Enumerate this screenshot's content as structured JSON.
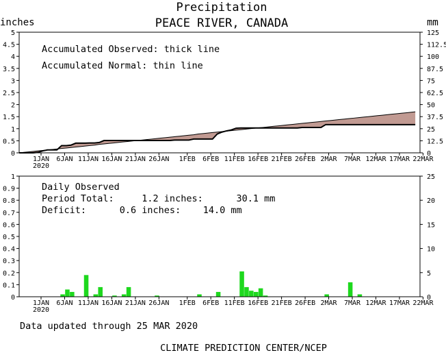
{
  "chart_data": [
    {
      "type": "area",
      "title": "Precipitation",
      "subtitle": "PEACE RIVER, CANADA",
      "ylabel_left": "inches",
      "ylabel_right": "mm",
      "ylim": [
        0,
        5
      ],
      "ylim_right": [
        0,
        125
      ],
      "yticks_left": [
        "0",
        "0.5",
        "1",
        "1.5",
        "2",
        "2.5",
        "3",
        "3.5",
        "4",
        "4.5",
        "5"
      ],
      "yticks_right": [
        "0",
        "12.5",
        "25",
        "37.5",
        "50",
        "62.5",
        "75",
        "87.5",
        "100",
        "112.5",
        "125"
      ],
      "xticks": [
        "1JAN",
        "6JAN",
        "11JAN",
        "16JAN",
        "21JAN",
        "26JAN",
        "1FEB",
        "6FEB",
        "11FEB",
        "16FEB",
        "21FEB",
        "26FEB",
        "2MAR",
        "7MAR",
        "12MAR",
        "17MAR",
        "22MAR"
      ],
      "xtick_sub": "2020",
      "annotations": [
        "Accumulated Observed: thick line",
        "Accumulated Normal: thin line"
      ],
      "series": [
        {
          "role": "observed",
          "values": [
            0.0,
            0.0,
            0.0,
            0.0,
            0.02,
            0.08,
            0.12,
            0.12,
            0.12,
            0.3,
            0.3,
            0.32,
            0.4,
            0.4,
            0.4,
            0.41,
            0.41,
            0.43,
            0.51,
            0.51,
            0.51,
            0.51,
            0.51,
            0.51,
            0.51,
            0.51,
            0.51,
            0.51,
            0.51,
            0.51,
            0.51,
            0.51,
            0.51,
            0.53,
            0.53,
            0.53,
            0.53,
            0.57,
            0.57,
            0.57,
            0.57,
            0.57,
            0.78,
            0.86,
            0.91,
            0.95,
            1.02,
            1.03,
            1.03,
            1.03,
            1.03,
            1.03,
            1.03,
            1.03,
            1.03,
            1.03,
            1.03,
            1.03,
            1.03,
            1.03,
            1.05,
            1.05,
            1.05,
            1.05,
            1.05,
            1.17,
            1.17,
            1.17,
            1.17,
            1.17,
            1.17,
            1.17,
            1.17,
            1.17,
            1.17,
            1.17,
            1.17,
            1.17,
            1.17,
            1.17,
            1.17,
            1.17,
            1.17,
            1.17,
            1.17
          ]
        },
        {
          "role": "normal",
          "values": [
            0.0,
            0.02,
            0.04,
            0.06,
            0.08,
            0.1,
            0.12,
            0.14,
            0.16,
            0.18,
            0.2,
            0.22,
            0.24,
            0.26,
            0.28,
            0.3,
            0.32,
            0.35,
            0.37,
            0.39,
            0.41,
            0.43,
            0.45,
            0.47,
            0.49,
            0.51,
            0.53,
            0.55,
            0.57,
            0.59,
            0.61,
            0.63,
            0.65,
            0.67,
            0.69,
            0.71,
            0.73,
            0.75,
            0.78,
            0.8,
            0.82,
            0.84,
            0.86,
            0.88,
            0.9,
            0.92,
            0.94,
            0.96,
            0.98,
            1.0,
            1.02,
            1.04,
            1.06,
            1.08,
            1.1,
            1.12,
            1.14,
            1.16,
            1.18,
            1.2,
            1.22,
            1.24,
            1.26,
            1.28,
            1.3,
            1.32,
            1.34,
            1.36,
            1.38,
            1.4,
            1.42,
            1.44,
            1.46,
            1.48,
            1.5,
            1.52,
            1.54,
            1.56,
            1.58,
            1.6,
            1.62,
            1.64,
            1.66,
            1.68,
            1.7
          ]
        }
      ]
    },
    {
      "type": "bar",
      "ylim": [
        0,
        1
      ],
      "ylim_right": [
        0,
        25
      ],
      "yticks_left": [
        "0",
        "0.1",
        "0.2",
        "0.3",
        "0.4",
        "0.5",
        "0.6",
        "0.7",
        "0.8",
        "0.9",
        "1"
      ],
      "yticks_right": [
        "0",
        "5",
        "10",
        "15",
        "20",
        "25"
      ],
      "xticks": [
        "1JAN",
        "6JAN",
        "11JAN",
        "16JAN",
        "21JAN",
        "26JAN",
        "1FEB",
        "6FEB",
        "11FEB",
        "16FEB",
        "21FEB",
        "26FEB",
        "2MAR",
        "7MAR",
        "12MAR",
        "17MAR",
        "22MAR"
      ],
      "xtick_sub": "2020",
      "annotations": [
        "Daily Observed",
        "Period Total:     1.2 inches:      30.1 mm",
        "Deficit:      0.6 inches:    14.0 mm"
      ],
      "bar_color": "#1ed81e",
      "values": [
        0,
        0,
        0,
        0,
        0.02,
        0.06,
        0.04,
        0,
        0,
        0.18,
        0,
        0.02,
        0.08,
        0,
        0,
        0.01,
        0,
        0.02,
        0.08,
        0,
        0,
        0,
        0,
        0,
        0.01,
        0,
        0,
        0,
        0,
        0,
        0,
        0,
        0,
        0.02,
        0,
        0,
        0,
        0.04,
        0,
        0,
        0,
        0,
        0.21,
        0.08,
        0.05,
        0.04,
        0.07,
        0.01,
        0,
        0,
        0,
        0,
        0,
        0,
        0,
        0,
        0,
        0,
        0,
        0,
        0.02,
        0,
        0,
        0,
        0,
        0.12,
        0,
        0.02,
        0,
        0,
        0,
        0,
        0,
        0,
        0,
        0,
        0,
        0,
        0,
        0,
        0,
        0,
        0,
        0,
        0
      ]
    }
  ],
  "colors": {
    "fill": "#c19a92",
    "bar": "#1ed81e",
    "axis": "#000000"
  },
  "footer": {
    "updated": "Data updated through 25 MAR 2020",
    "credit": "CLIMATE PREDICTION CENTER/NCEP"
  }
}
